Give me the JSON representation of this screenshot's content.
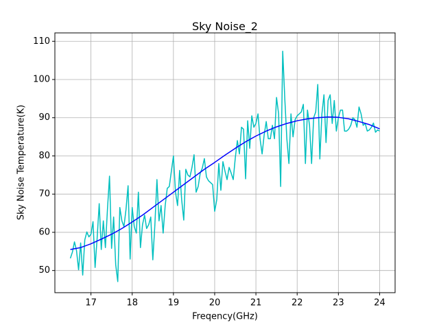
{
  "chart_data": {
    "type": "line",
    "title": "Sky Noise_2",
    "x_label": "Freqency(GHz)",
    "y_label": "Sky Noise Temperature(K)",
    "xlim": [
      16.125,
      24.375
    ],
    "xticks": [
      17,
      18,
      19,
      20,
      21,
      22,
      23,
      24
    ],
    "ylim": [
      44.2,
      112.2
    ],
    "yticks": [
      50,
      60,
      70,
      80,
      90,
      100,
      110
    ],
    "grid": true,
    "series": [
      {
        "color": "#00bfbf",
        "x": [
          16.5,
          16.55,
          16.6,
          16.65,
          16.7,
          16.75,
          16.8,
          16.85,
          16.9,
          16.95,
          17,
          17.05,
          17.1,
          17.15,
          17.2,
          17.25,
          17.3,
          17.35,
          17.4,
          17.45,
          17.5,
          17.55,
          17.6,
          17.65,
          17.7,
          17.75,
          17.8,
          17.85,
          17.9,
          17.95,
          18,
          18.05,
          18.1,
          18.15,
          18.2,
          18.25,
          18.3,
          18.35,
          18.4,
          18.45,
          18.5,
          18.55,
          18.6,
          18.65,
          18.7,
          18.75,
          18.8,
          18.85,
          18.9,
          18.95,
          19,
          19.05,
          19.1,
          19.15,
          19.2,
          19.25,
          19.3,
          19.35,
          19.4,
          19.45,
          19.5,
          19.55,
          19.6,
          19.65,
          19.7,
          19.75,
          19.8,
          19.85,
          19.9,
          19.95,
          20,
          20.05,
          20.1,
          20.15,
          20.2,
          20.25,
          20.3,
          20.35,
          20.4,
          20.45,
          20.5,
          20.55,
          20.6,
          20.65,
          20.7,
          20.75,
          20.8,
          20.85,
          20.9,
          20.95,
          21,
          21.05,
          21.1,
          21.15,
          21.2,
          21.25,
          21.3,
          21.35,
          21.4,
          21.45,
          21.5,
          21.55,
          21.6,
          21.65,
          21.7,
          21.75,
          21.8,
          21.85,
          21.9,
          21.95,
          22,
          22.05,
          22.1,
          22.15,
          22.2,
          22.25,
          22.3,
          22.35,
          22.4,
          22.45,
          22.5,
          22.55,
          22.6,
          22.65,
          22.7,
          22.75,
          22.8,
          22.85,
          22.9,
          22.95,
          23,
          23.05,
          23.1,
          23.15,
          23.2,
          23.25,
          23.3,
          23.35,
          23.4,
          23.45,
          23.5,
          23.55,
          23.6,
          23.65,
          23.7,
          23.75,
          23.8,
          23.85,
          23.9,
          23.95,
          24
        ],
        "values": [
          53.2,
          54.8,
          57.5,
          55.2,
          50.2,
          57.2,
          48.8,
          58.0,
          60.1,
          58.8,
          59.5,
          62.8,
          50.8,
          58.5,
          67.5,
          55.5,
          63.0,
          56.0,
          66.0,
          74.7,
          55.8,
          64.0,
          51.5,
          47.1,
          66.5,
          63.0,
          61.5,
          66.0,
          72.2,
          53.0,
          66.5,
          61.5,
          59.8,
          70.5,
          56.0,
          62.0,
          64.5,
          61.0,
          62.0,
          64.0,
          52.8,
          62.0,
          73.8,
          63.0,
          67.0,
          59.8,
          67.0,
          71.5,
          72.0,
          76.0,
          80.0,
          70.5,
          67.0,
          76.2,
          68.5,
          63.2,
          76.5,
          75.0,
          74.5,
          77.0,
          80.3,
          70.5,
          72.0,
          75.5,
          76.8,
          79.3,
          74.5,
          73.5,
          73.0,
          72.5,
          65.5,
          68.5,
          78.0,
          71.0,
          78.5,
          76.0,
          73.8,
          77.0,
          75.5,
          73.8,
          79.5,
          84.0,
          80.5,
          87.5,
          87.0,
          74.0,
          89.2,
          82.0,
          90.5,
          87.5,
          88.5,
          91.0,
          84.5,
          80.5,
          85.5,
          89.0,
          84.5,
          84.5,
          88.0,
          84.5,
          95.3,
          91.0,
          72.0,
          107.4,
          95.0,
          84.5,
          78.0,
          91.0,
          85.0,
          89.5,
          90.5,
          91.0,
          91.5,
          93.5,
          78.0,
          92.0,
          88.0,
          78.0,
          90.0,
          91.5,
          98.7,
          79.2,
          91.0,
          96.0,
          83.5,
          94.5,
          96.0,
          88.5,
          94.5,
          86.5,
          90.0,
          92.0,
          92.0,
          86.5,
          86.5,
          87.0,
          88.0,
          90.0,
          89.5,
          87.5,
          92.8,
          91.0,
          88.0,
          88.5,
          86.5,
          86.8,
          87.5,
          88.6,
          86.2,
          86.8,
          86.5
        ]
      },
      {
        "color": "#0000ff",
        "x": [
          16.5,
          16.75,
          17,
          17.25,
          17.5,
          17.75,
          18,
          18.25,
          18.5,
          18.75,
          19,
          19.25,
          19.5,
          19.75,
          20,
          20.25,
          20.5,
          20.75,
          21,
          21.25,
          21.5,
          21.75,
          22,
          22.25,
          22.5,
          22.75,
          23,
          23.25,
          23.5,
          23.75,
          24
        ],
        "values": [
          55.5,
          56.0,
          57.0,
          58.2,
          59.5,
          61.0,
          62.7,
          64.5,
          66.5,
          68.5,
          70.5,
          72.5,
          74.5,
          76.5,
          78.3,
          80.2,
          82.0,
          83.7,
          85.2,
          86.5,
          87.6,
          88.5,
          89.2,
          89.7,
          90.0,
          90.2,
          90.1,
          89.7,
          89.0,
          88.2,
          87.1
        ]
      }
    ]
  }
}
